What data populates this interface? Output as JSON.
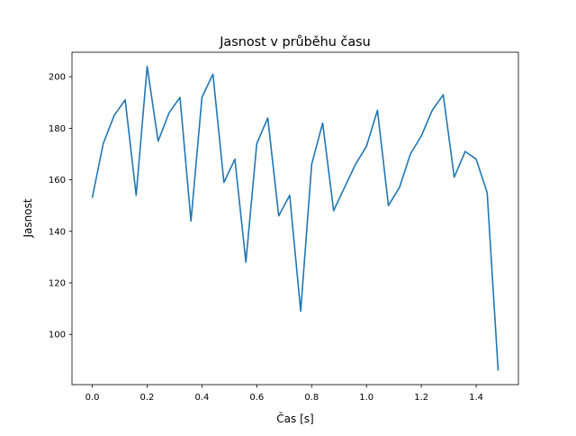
{
  "chart_data": {
    "type": "line",
    "title": "Jasnost v průběhu času",
    "xlabel": "Čas [s]",
    "ylabel": "Jasnost",
    "xlim": [
      -0.074,
      1.554
    ],
    "ylim": [
      80.5,
      209.5
    ],
    "xticks": [
      0.0,
      0.2,
      0.4,
      0.6,
      0.8,
      1.0,
      1.2,
      1.4
    ],
    "xtick_labels": [
      "0.0",
      "0.2",
      "0.4",
      "0.6",
      "0.8",
      "1.0",
      "1.2",
      "1.4"
    ],
    "yticks": [
      100,
      120,
      140,
      160,
      180,
      200
    ],
    "ytick_labels": [
      "100",
      "120",
      "140",
      "160",
      "180",
      "200"
    ],
    "grid": false,
    "series": [
      {
        "name": "Jasnost",
        "color": "#1f77b4",
        "x": [
          0.0,
          0.04,
          0.08,
          0.12,
          0.16,
          0.2,
          0.24,
          0.28,
          0.32,
          0.36,
          0.4,
          0.44,
          0.48,
          0.52,
          0.56,
          0.6,
          0.64,
          0.68,
          0.72,
          0.76,
          0.8,
          0.84,
          0.88,
          0.92,
          0.96,
          1.0,
          1.04,
          1.08,
          1.12,
          1.16,
          1.2,
          1.24,
          1.28,
          1.32,
          1.36,
          1.4,
          1.44,
          1.48
        ],
        "y": [
          153,
          174,
          185,
          191,
          154,
          204,
          175,
          186,
          192,
          144,
          192,
          201,
          159,
          168,
          128,
          174,
          184,
          146,
          154,
          109,
          166,
          182,
          148,
          157,
          166,
          173,
          187,
          150,
          157,
          170,
          177,
          187,
          193,
          161,
          171,
          168,
          155,
          86
        ]
      }
    ]
  }
}
